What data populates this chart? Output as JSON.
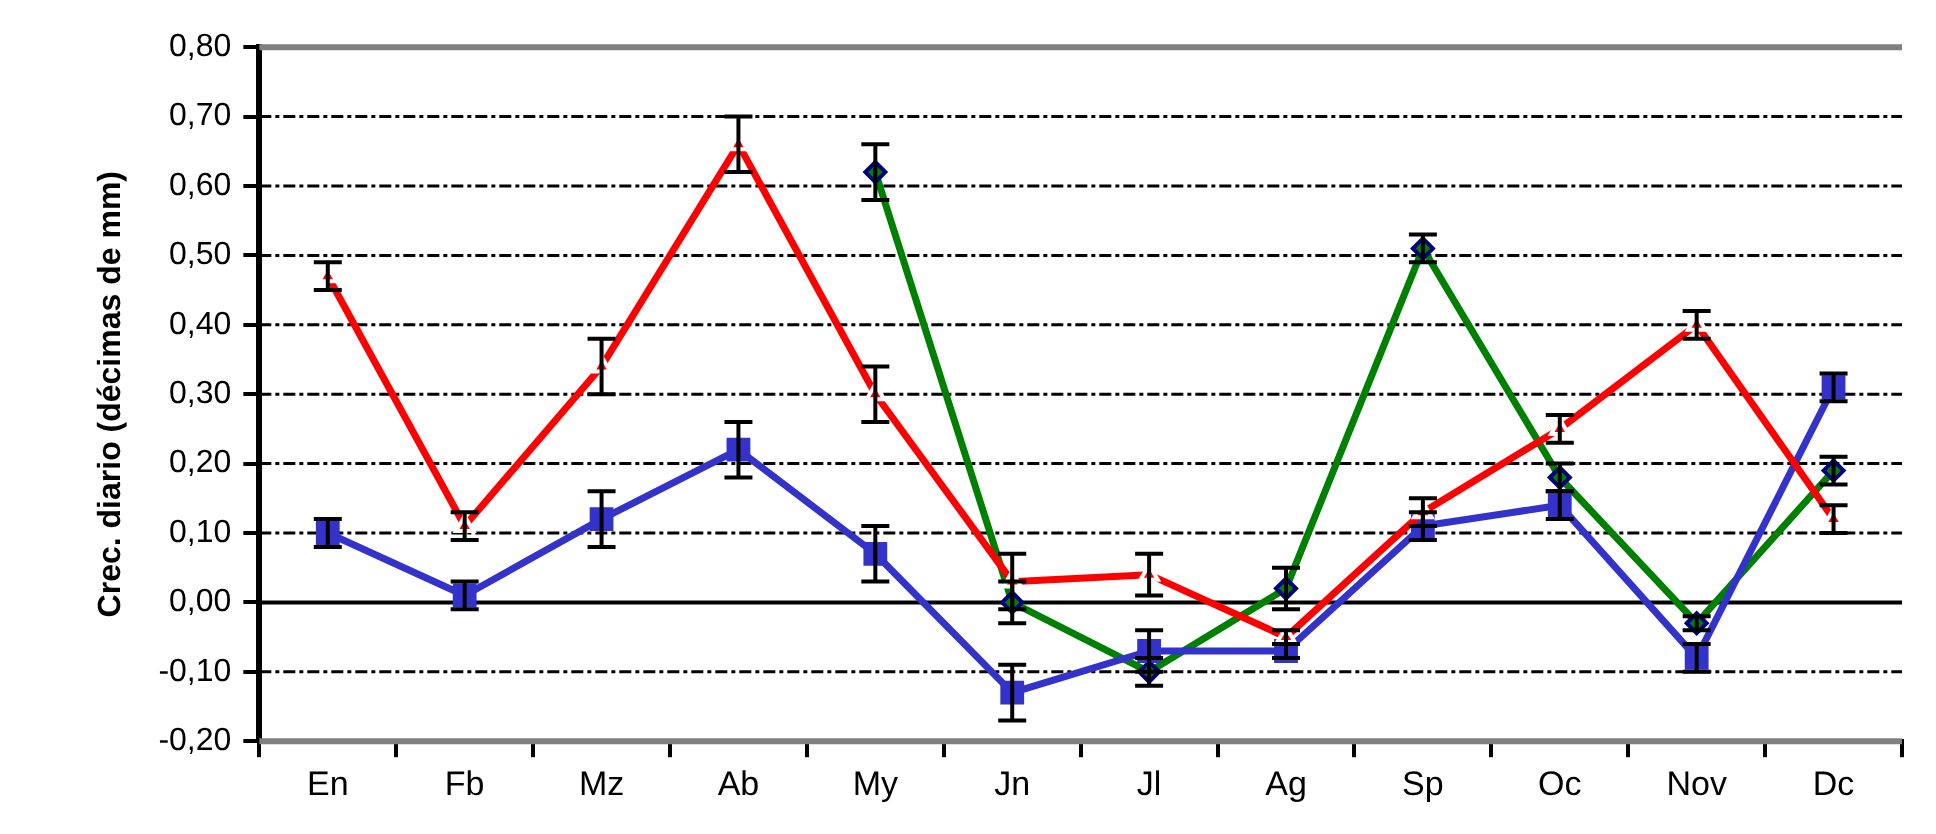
{
  "chart_data": {
    "type": "line",
    "ylabel": "Crec. diario (décimas de mm)",
    "categories": [
      "En",
      "Fb",
      "Mz",
      "Ab",
      "My",
      "Jn",
      "Jl",
      "Ag",
      "Sp",
      "Oc",
      "Nov",
      "Dc"
    ],
    "series": [
      {
        "color": "#ff0000",
        "marker": "triangle",
        "values": [
          0.47,
          0.11,
          0.34,
          0.66,
          0.3,
          0.03,
          0.04,
          -0.05,
          0.13,
          0.25,
          0.4,
          0.12
        ],
        "errors": [
          0.02,
          0.02,
          0.04,
          0.04,
          0.04,
          0.04,
          0.03,
          0.01,
          0.02,
          0.02,
          0.02,
          0.02
        ]
      },
      {
        "color": "#3333cc",
        "marker": "square",
        "values": [
          0.1,
          0.01,
          0.12,
          0.22,
          0.07,
          -0.13,
          -0.07,
          -0.07,
          0.11,
          0.14,
          -0.08,
          0.31
        ],
        "errors": [
          0.02,
          0.02,
          0.04,
          0.04,
          0.04,
          0.04,
          0.03,
          0.01,
          0.02,
          0.02,
          0.02,
          0.02
        ]
      },
      {
        "color": "#008000",
        "marker": "diamond",
        "values": [
          null,
          null,
          null,
          null,
          0.62,
          0.0,
          -0.1,
          0.02,
          0.51,
          0.18,
          -0.03,
          0.19
        ],
        "errors": [
          null,
          null,
          null,
          null,
          0.04,
          0.03,
          0.02,
          0.03,
          0.02,
          0.02,
          0.01,
          0.02
        ]
      }
    ],
    "ylim": [
      -0.2,
      0.8
    ],
    "yticks": [
      {
        "value": -0.2,
        "label": "-0,20"
      },
      {
        "value": -0.1,
        "label": "-0,10"
      },
      {
        "value": 0,
        "label": "0,00"
      },
      {
        "value": 0.1,
        "label": "0,10"
      },
      {
        "value": 0.2,
        "label": "0,20"
      },
      {
        "value": 0.3,
        "label": "0,30"
      },
      {
        "value": 0.4,
        "label": "0,40"
      },
      {
        "value": 0.5,
        "label": "0,50"
      },
      {
        "value": 0.6,
        "label": "0,60"
      },
      {
        "value": 0.7,
        "label": "0,70"
      },
      {
        "value": 0.8,
        "label": "0,80"
      }
    ],
    "grid": "y",
    "legend": false
  }
}
